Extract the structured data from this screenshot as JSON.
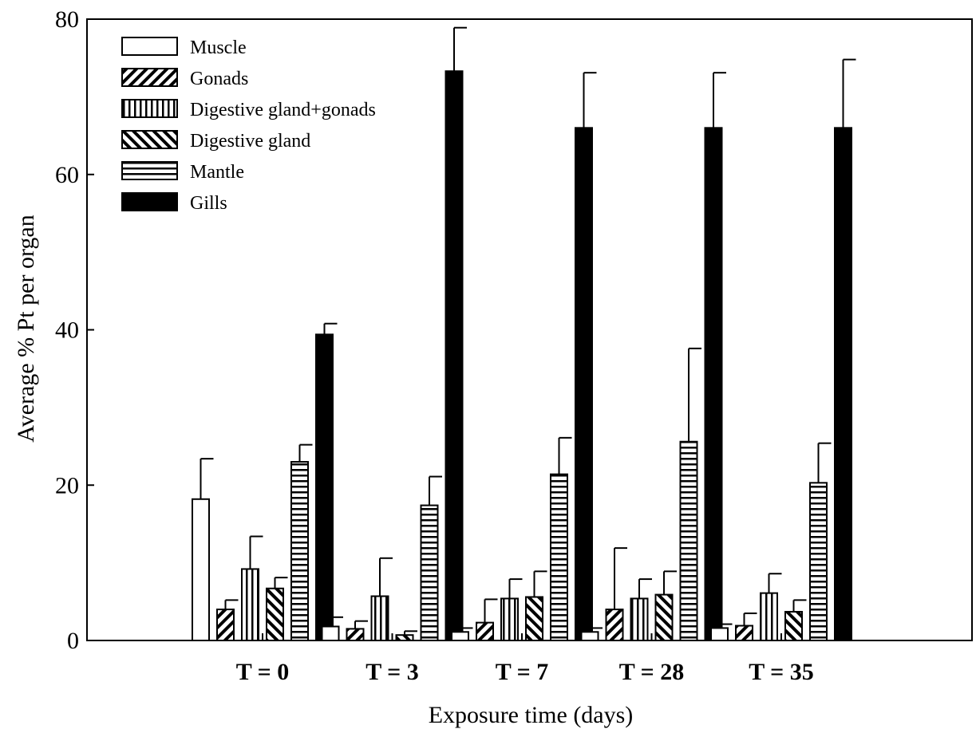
{
  "chart_data": {
    "type": "bar",
    "title": "",
    "xlabel": "Exposure time (days)",
    "ylabel": "Average % Pt per organ",
    "ylim": [
      0,
      80
    ],
    "yticks": [
      0,
      20,
      40,
      60,
      80
    ],
    "grid": false,
    "legend_position": "top-left",
    "categories": [
      "T = 0",
      "T = 3",
      "T = 7",
      "T = 28",
      "T = 35"
    ],
    "series": [
      {
        "name": "Muscle",
        "pattern": "white",
        "values": [
          18.2,
          1.8,
          1.1,
          1.1,
          1.6
        ],
        "errors": [
          5.2,
          1.2,
          0.5,
          0.5,
          0.5
        ]
      },
      {
        "name": "Gonads",
        "pattern": "diag-right",
        "values": [
          4.0,
          1.5,
          2.3,
          4.0,
          1.9
        ],
        "errors": [
          1.2,
          1.0,
          3.0,
          7.9,
          1.6
        ]
      },
      {
        "name": "Digestive gland+gonads",
        "pattern": "vertical",
        "values": [
          9.2,
          5.7,
          5.4,
          5.4,
          6.1
        ],
        "errors": [
          4.2,
          4.9,
          2.5,
          2.5,
          2.5
        ]
      },
      {
        "name": "Digestive gland",
        "pattern": "diag-left",
        "values": [
          6.7,
          0.7,
          5.6,
          5.9,
          3.7
        ],
        "errors": [
          1.4,
          0.5,
          3.3,
          3.0,
          1.5
        ]
      },
      {
        "name": "Mantle",
        "pattern": "horizontal",
        "values": [
          23.0,
          17.4,
          21.4,
          25.6,
          20.3
        ],
        "errors": [
          2.2,
          3.7,
          4.7,
          12.0,
          5.1
        ]
      },
      {
        "name": "Gills",
        "pattern": "black",
        "values": [
          39.4,
          73.3,
          66.0,
          66.0,
          66.0
        ],
        "errors": [
          1.4,
          5.6,
          7.1,
          7.1,
          8.8
        ]
      }
    ]
  }
}
